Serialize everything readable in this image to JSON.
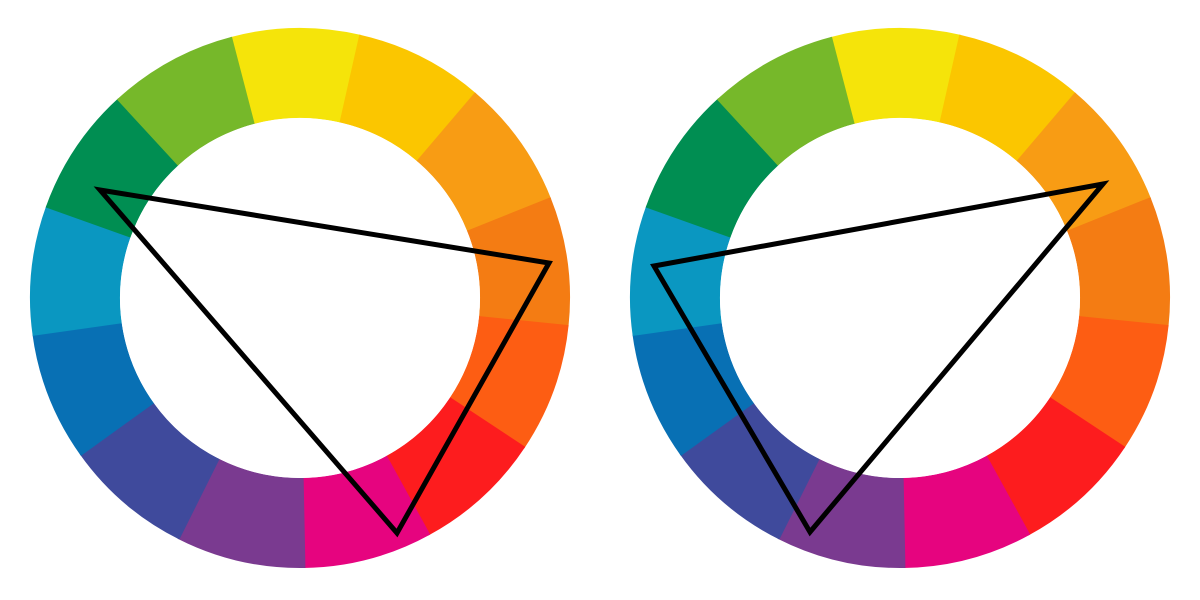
{
  "diagram": {
    "hues": [
      {
        "name": "yellow",
        "color": "#f5e40a"
      },
      {
        "name": "yellow-orange",
        "color": "#fbc600"
      },
      {
        "name": "orange",
        "color": "#f89c14"
      },
      {
        "name": "orange-red",
        "color": "#f47c13"
      },
      {
        "name": "red-orange",
        "color": "#fd5d13"
      },
      {
        "name": "red",
        "color": "#fd1c1e"
      },
      {
        "name": "magenta",
        "color": "#e6047f"
      },
      {
        "name": "violet",
        "color": "#7a3a90"
      },
      {
        "name": "blue-violet",
        "color": "#3f4a9c"
      },
      {
        "name": "blue",
        "color": "#0870b4"
      },
      {
        "name": "cyan-blue",
        "color": "#0a97c1"
      },
      {
        "name": "green",
        "color": "#008e52"
      },
      {
        "name": "yellow-green",
        "color": "#76b82a"
      }
    ],
    "wheels": [
      {
        "name": "left",
        "triangle_hues": [
          "green",
          "red-orange",
          "magenta"
        ]
      },
      {
        "name": "right",
        "triangle_hues": [
          "cyan-blue",
          "orange",
          "blue-violet"
        ]
      }
    ],
    "line_color": "#000000"
  }
}
